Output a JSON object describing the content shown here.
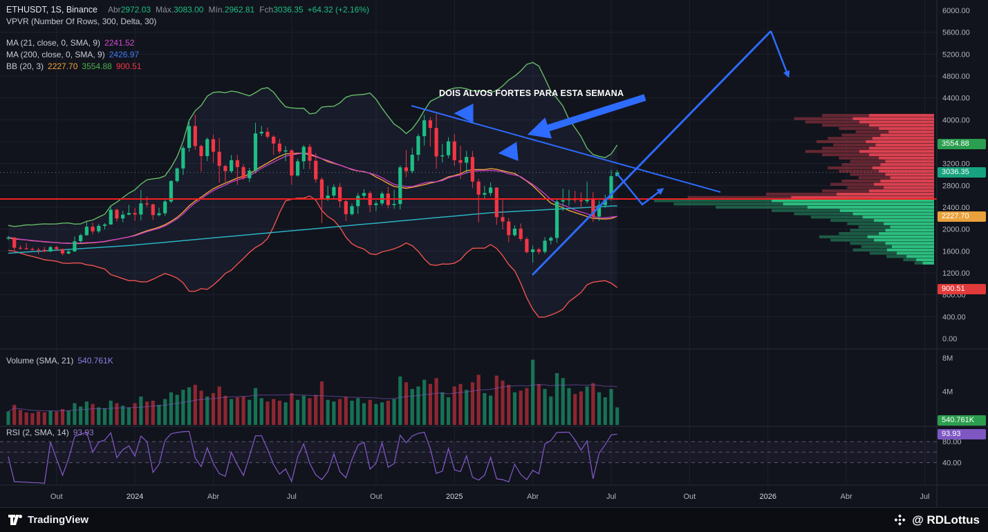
{
  "header": {
    "symbol_title": "ETHUSDT, 1S, Binance",
    "ohlc": {
      "open_label": "Abr",
      "open": "2972.03",
      "high_label": "Máx.",
      "high": "3083.00",
      "low_label": "Mín.",
      "low": "2962.81",
      "close_label": "Fch",
      "close": "3036.35",
      "change": "+64.32 (+2.16%)"
    },
    "indicators": {
      "vpvr": "VPVR (Number Of Rows, 300, Delta, 30)",
      "ma21_label": "MA (21, close, 0, SMA, 9)",
      "ma21_value": "2241.52",
      "ma200_label": "MA (200, close, 0, SMA, 9)",
      "ma200_value": "2426.97",
      "bb_label": "BB (20, 3)",
      "bb_basis": "2227.70",
      "bb_upper": "3554.88",
      "bb_lower": "900.51"
    }
  },
  "annotation": "DOIS ALVOS FORTES PARA ESTA SEMANA",
  "volume_pane": {
    "label": "Volume (SMA, 21)",
    "value": "540.761K"
  },
  "rsi_pane": {
    "label": "RSI (2, SMA, 14)",
    "value": "93.93"
  },
  "axes": {
    "price_labels": [
      "6000.00",
      "5600.00",
      "5200.00",
      "4800.00",
      "4400.00",
      "4000.00",
      "3600.00",
      "3200.00",
      "2800.00",
      "2400.00",
      "2000.00",
      "1600.00",
      "1200.00",
      "800.00",
      "400.00",
      "0.00"
    ],
    "volume_labels": [
      "8M",
      "4M"
    ],
    "rsi_labels": [
      "80.00",
      "40.00"
    ]
  },
  "badges": [
    {
      "id": "bb-upper-badge",
      "text": "3554.88",
      "pane": "price",
      "at": 3554.88,
      "bg": "#2c9e4f"
    },
    {
      "id": "last-price-badge",
      "text": "3036.35",
      "pane": "price",
      "at": 3036.35,
      "bg": "#17a37f"
    },
    {
      "id": "bb-basis-badge",
      "text": "2227.70",
      "pane": "price",
      "at": 2227.7,
      "bg": "#e9a13b"
    },
    {
      "id": "bb-lower-badge",
      "text": "900.51",
      "pane": "price",
      "at": 900.51,
      "bg": "#e13a3a"
    },
    {
      "id": "volume-badge",
      "text": "540.761K",
      "pane": "volume",
      "at": 0.54,
      "bg": "#2c9e4f"
    },
    {
      "id": "rsi-badge",
      "text": "93.93",
      "pane": "rsi",
      "at": 93.93,
      "bg": "#7e57c2"
    }
  ],
  "footer": {
    "brand": "TradingView",
    "credit": "@ RDLottus"
  },
  "colors": {
    "background": "#11141c",
    "grid": "#1c212e",
    "pane_border": "#262b38",
    "axis_text": "#b2b5be",
    "text": "#d7dae2",
    "up": "#1ebd85",
    "down": "#f23645",
    "ma21": "#cc3ecc",
    "ma200": "#2ab3c4",
    "bb_basis": "#f2a33c",
    "bb_upper": "#66bb6a",
    "bb_lower": "#ef5350",
    "band_fill": "rgba(135,160,250,0.06)",
    "red_line": "#f32020",
    "last_price_line": "#9598a1",
    "drawing": "#2e6bff",
    "rsi": "#7e57c2",
    "rsi_band": "rgba(126,87,194,0.08)",
    "vol_up": "rgba(30,189,133,0.55)",
    "vol_down": "rgba(242,54,69,0.55)",
    "vol_ma": "#7e57c2",
    "vpvr_red": "#ef4656",
    "vpvr_green": "#2fd08a"
  },
  "chart_data": {
    "type": "candlestick",
    "symbol": "ETHUSDT",
    "timeframe": "1W (1S)",
    "exchange": "Binance",
    "price_range": [
      0,
      6000
    ],
    "grid_step": 400,
    "last_price": 3036.35,
    "red_line_price": 2551,
    "volume_axis_m": [
      0,
      8
    ],
    "rsi_levels": [
      80,
      60,
      40
    ],
    "time_ticks": [
      [
        "Out",
        8
      ],
      [
        "2024",
        21
      ],
      [
        "Abr",
        34
      ],
      [
        "Jul",
        47
      ],
      [
        "Out",
        61
      ],
      [
        "2025",
        74
      ],
      [
        "Abr",
        87
      ],
      [
        "Jul",
        100
      ],
      [
        "Out",
        113
      ],
      [
        "2026",
        126
      ],
      [
        "Abr",
        139
      ],
      [
        "Jul",
        152
      ]
    ],
    "pre_closes": [
      2120,
      2010,
      1870,
      1820,
      1910,
      1775,
      1851,
      1808,
      1775,
      1738,
      1620,
      1901,
      1875,
      1900,
      1860,
      1830,
      1893,
      1855,
      1826,
      1846
    ],
    "candles": [
      [
        1827,
        1878,
        1801,
        1846
      ],
      [
        1846,
        1855,
        1595,
        1660
      ],
      [
        1660,
        1705,
        1620,
        1650
      ],
      [
        1650,
        1745,
        1625,
        1635
      ],
      [
        1635,
        1665,
        1610,
        1625
      ],
      [
        1625,
        1660,
        1540,
        1622
      ],
      [
        1622,
        1675,
        1575,
        1592
      ],
      [
        1592,
        1695,
        1580,
        1671
      ],
      [
        1671,
        1695,
        1605,
        1637
      ],
      [
        1637,
        1645,
        1520,
        1555
      ],
      [
        1555,
        1640,
        1540,
        1592
      ],
      [
        1592,
        1865,
        1585,
        1780
      ],
      [
        1780,
        1915,
        1750,
        1890
      ],
      [
        1890,
        2130,
        1880,
        2045
      ],
      [
        2045,
        2120,
        1905,
        1960
      ],
      [
        1960,
        2095,
        1925,
        2060
      ],
      [
        2060,
        2110,
        1995,
        2085
      ],
      [
        2085,
        2405,
        2080,
        2355
      ],
      [
        2355,
        2375,
        2140,
        2195
      ],
      [
        2195,
        2335,
        2125,
        2265
      ],
      [
        2265,
        2445,
        2255,
        2295
      ],
      [
        2295,
        2385,
        2150,
        2268
      ],
      [
        2268,
        2717,
        2160,
        2470
      ],
      [
        2470,
        2595,
        2405,
        2453
      ],
      [
        2453,
        2465,
        2168,
        2257
      ],
      [
        2257,
        2392,
        2235,
        2290
      ],
      [
        2290,
        2542,
        2245,
        2506
      ],
      [
        2506,
        2895,
        2475,
        2880
      ],
      [
        2880,
        3125,
        2850,
        3110
      ],
      [
        3110,
        3525,
        2990,
        3485
      ],
      [
        3485,
        4005,
        3415,
        3885
      ],
      [
        3885,
        4093,
        3450,
        3520
      ],
      [
        3520,
        3545,
        3055,
        3335
      ],
      [
        3335,
        3675,
        3245,
        3645
      ],
      [
        3645,
        3730,
        3210,
        3415
      ],
      [
        3415,
        3670,
        2850,
        3155
      ],
      [
        3155,
        3175,
        2865,
        3060
      ],
      [
        3060,
        3355,
        3025,
        3260
      ],
      [
        3260,
        3360,
        2810,
        3135
      ],
      [
        3135,
        3190,
        2900,
        2930
      ],
      [
        2930,
        3120,
        2860,
        3070
      ],
      [
        3070,
        3946,
        3020,
        3750
      ],
      [
        3750,
        3890,
        3700,
        3780
      ],
      [
        3780,
        3860,
        3650,
        3690
      ],
      [
        3690,
        3720,
        3360,
        3565
      ],
      [
        3565,
        3650,
        3380,
        3420
      ],
      [
        3420,
        3520,
        3240,
        3440
      ],
      [
        3440,
        3460,
        2810,
        2980
      ],
      [
        2980,
        3285,
        2960,
        3240
      ],
      [
        3240,
        3540,
        3100,
        3505
      ],
      [
        3505,
        3560,
        3090,
        3250
      ],
      [
        3250,
        3390,
        2850,
        2910
      ],
      [
        2910,
        2950,
        2111,
        2550
      ],
      [
        2550,
        2790,
        2515,
        2615
      ],
      [
        2615,
        2820,
        2560,
        2770
      ],
      [
        2770,
        2840,
        2395,
        2510
      ],
      [
        2510,
        2560,
        2150,
        2275
      ],
      [
        2275,
        2470,
        2250,
        2420
      ],
      [
        2420,
        2660,
        2280,
        2610
      ],
      [
        2610,
        2730,
        2555,
        2660
      ],
      [
        2660,
        2700,
        2310,
        2440
      ],
      [
        2440,
        2520,
        2330,
        2470
      ],
      [
        2470,
        2690,
        2430,
        2650
      ],
      [
        2650,
        2770,
        2380,
        2440
      ],
      [
        2440,
        2720,
        2370,
        2460
      ],
      [
        2460,
        3165,
        2360,
        3130
      ],
      [
        3130,
        3445,
        2950,
        3060
      ],
      [
        3060,
        3490,
        3020,
        3360
      ],
      [
        3360,
        3740,
        3250,
        3700
      ],
      [
        3700,
        4090,
        3530,
        3990
      ],
      [
        3990,
        4050,
        3510,
        3850
      ],
      [
        3850,
        4107,
        3100,
        3330
      ],
      [
        3330,
        3560,
        3220,
        3350
      ],
      [
        3350,
        3680,
        3300,
        3605
      ],
      [
        3605,
        3740,
        3155,
        3260
      ],
      [
        3260,
        3525,
        2920,
        3215
      ],
      [
        3215,
        3430,
        3020,
        3320
      ],
      [
        3320,
        3430,
        2750,
        2870
      ],
      [
        2870,
        2920,
        2125,
        2630
      ],
      [
        2630,
        2790,
        2555,
        2660
      ],
      [
        2660,
        2855,
        2605,
        2760
      ],
      [
        2760,
        2765,
        2080,
        2220
      ],
      [
        2220,
        2550,
        1995,
        2140
      ],
      [
        2140,
        2205,
        1760,
        1890
      ],
      [
        1890,
        2070,
        1865,
        2010
      ],
      [
        2010,
        2105,
        1780,
        1820
      ],
      [
        1820,
        1855,
        1555,
        1580
      ],
      [
        1580,
        1700,
        1385,
        1630
      ],
      [
        1630,
        1660,
        1540,
        1585
      ],
      [
        1585,
        1855,
        1555,
        1790
      ],
      [
        1790,
        1870,
        1720,
        1840
      ],
      [
        1840,
        2550,
        1750,
        2505
      ],
      [
        2505,
        2740,
        2330,
        2530
      ],
      [
        2530,
        2720,
        2430,
        2550
      ],
      [
        2550,
        2700,
        2480,
        2530
      ],
      [
        2530,
        2670,
        2380,
        2510
      ],
      [
        2510,
        2870,
        2470,
        2550
      ],
      [
        2550,
        2680,
        2130,
        2230
      ],
      [
        2230,
        2520,
        2150,
        2440
      ],
      [
        2440,
        2630,
        2390,
        2560
      ],
      [
        2560,
        3080,
        2520,
        2970
      ],
      [
        2972.03,
        3083,
        2962.81,
        3036.35
      ]
    ],
    "volumes_m": [
      1.6,
      2.4,
      1.8,
      1.5,
      1.4,
      1.6,
      1.5,
      1.7,
      1.6,
      1.9,
      1.7,
      2.6,
      2.2,
      2.8,
      2.5,
      2.1,
      2.0,
      2.9,
      2.6,
      2.3,
      2.1,
      2.6,
      3.4,
      2.8,
      2.9,
      2.4,
      3.1,
      3.9,
      3.6,
      4.2,
      4.5,
      4.8,
      4.1,
      3.4,
      3.8,
      4.6,
      3.5,
      3.1,
      3.3,
      3.4,
      3.0,
      4.4,
      3.2,
      2.8,
      3.1,
      2.9,
      2.7,
      3.8,
      3.0,
      3.5,
      3.2,
      3.6,
      5.2,
      3.0,
      2.8,
      3.1,
      3.4,
      2.9,
      3.2,
      2.6,
      3.0,
      2.5,
      2.7,
      2.9,
      3.1,
      5.8,
      5.1,
      4.3,
      4.6,
      5.4,
      4.9,
      5.6,
      3.9,
      3.3,
      4.6,
      4.9,
      4.2,
      5.1,
      6.0,
      3.8,
      3.5,
      5.9,
      5.3,
      4.8,
      3.9,
      4.1,
      4.4,
      7.8,
      4.9,
      4.3,
      3.4,
      6.2,
      5.6,
      4.4,
      3.7,
      4.0,
      4.6,
      5.0,
      3.9,
      3.3,
      4.3,
      2.1
    ],
    "overlays": {
      "ma21_window": 21,
      "bb_window": 20,
      "bb_mult": 3,
      "rsi_period": 2,
      "ma200_points": [
        [
          0,
          1560
        ],
        [
          20,
          1700
        ],
        [
          40,
          1900
        ],
        [
          60,
          2100
        ],
        [
          80,
          2300
        ],
        [
          101,
          2427
        ]
      ]
    },
    "vpvr_rows": [
      [
        4080,
        0.4,
        "r"
      ],
      [
        4020,
        0.5,
        "r"
      ],
      [
        3960,
        0.46,
        "r"
      ],
      [
        3900,
        0.4,
        "r"
      ],
      [
        3840,
        0.34,
        "r"
      ],
      [
        3780,
        0.28,
        "r"
      ],
      [
        3720,
        0.33,
        "r"
      ],
      [
        3660,
        0.38,
        "r"
      ],
      [
        3600,
        0.42,
        "r"
      ],
      [
        3540,
        0.36,
        "r"
      ],
      [
        3480,
        0.4,
        "r"
      ],
      [
        3420,
        0.46,
        "r"
      ],
      [
        3360,
        0.4,
        "r"
      ],
      [
        3300,
        0.34,
        "r"
      ],
      [
        3240,
        0.3,
        "r"
      ],
      [
        3180,
        0.33,
        "r"
      ],
      [
        3120,
        0.38,
        "r"
      ],
      [
        3060,
        0.34,
        "r"
      ],
      [
        3000,
        0.3,
        "r"
      ],
      [
        2940,
        0.27,
        "r"
      ],
      [
        2880,
        0.33,
        "r"
      ],
      [
        2820,
        0.37,
        "r"
      ],
      [
        2760,
        0.31,
        "r"
      ],
      [
        2700,
        0.4,
        "r"
      ],
      [
        2640,
        0.6,
        "r"
      ],
      [
        2580,
        0.88,
        "r"
      ],
      [
        2520,
        1.0,
        "g"
      ],
      [
        2460,
        0.93,
        "g"
      ],
      [
        2400,
        0.78,
        "g"
      ],
      [
        2340,
        0.58,
        "g"
      ],
      [
        2280,
        0.5,
        "g"
      ],
      [
        2220,
        0.44,
        "g"
      ],
      [
        2160,
        0.37,
        "g"
      ],
      [
        2100,
        0.31,
        "g"
      ],
      [
        2040,
        0.27,
        "g"
      ],
      [
        1980,
        0.3,
        "g"
      ],
      [
        1920,
        0.34,
        "g"
      ],
      [
        1860,
        0.41,
        "g"
      ],
      [
        1800,
        0.37,
        "g"
      ],
      [
        1740,
        0.3,
        "g"
      ],
      [
        1680,
        0.26,
        "g"
      ],
      [
        1620,
        0.29,
        "g"
      ],
      [
        1560,
        0.23,
        "g"
      ],
      [
        1500,
        0.17,
        "g"
      ],
      [
        1440,
        0.11,
        "g"
      ],
      [
        1380,
        0.07,
        "g"
      ]
    ]
  }
}
